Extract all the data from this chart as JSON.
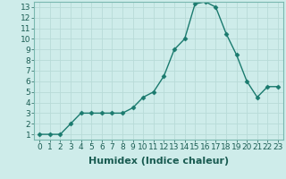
{
  "x": [
    0,
    1,
    2,
    3,
    4,
    5,
    6,
    7,
    8,
    9,
    10,
    11,
    12,
    13,
    14,
    15,
    16,
    17,
    18,
    19,
    20,
    21,
    22,
    23
  ],
  "y": [
    1,
    1,
    1,
    2,
    3,
    3,
    3,
    3,
    3,
    3.5,
    4.5,
    5,
    6.5,
    9,
    10,
    13.3,
    13.5,
    13,
    10.5,
    8.5,
    6,
    4.5,
    5.5,
    5.5
  ],
  "line_color": "#1a7a6e",
  "marker": "D",
  "marker_size": 2.5,
  "bg_color": "#ceecea",
  "grid_color": "#b8dbd8",
  "xlabel": "Humidex (Indice chaleur)",
  "ylim": [
    0.5,
    13.5
  ],
  "xlim": [
    -0.5,
    23.5
  ],
  "yticks": [
    1,
    2,
    3,
    4,
    5,
    6,
    7,
    8,
    9,
    10,
    11,
    12,
    13
  ],
  "xticks": [
    0,
    1,
    2,
    3,
    4,
    5,
    6,
    7,
    8,
    9,
    10,
    11,
    12,
    13,
    14,
    15,
    16,
    17,
    18,
    19,
    20,
    21,
    22,
    23
  ],
  "tick_fontsize": 6.5,
  "xlabel_fontsize": 8,
  "xlabel_fontweight": "bold"
}
